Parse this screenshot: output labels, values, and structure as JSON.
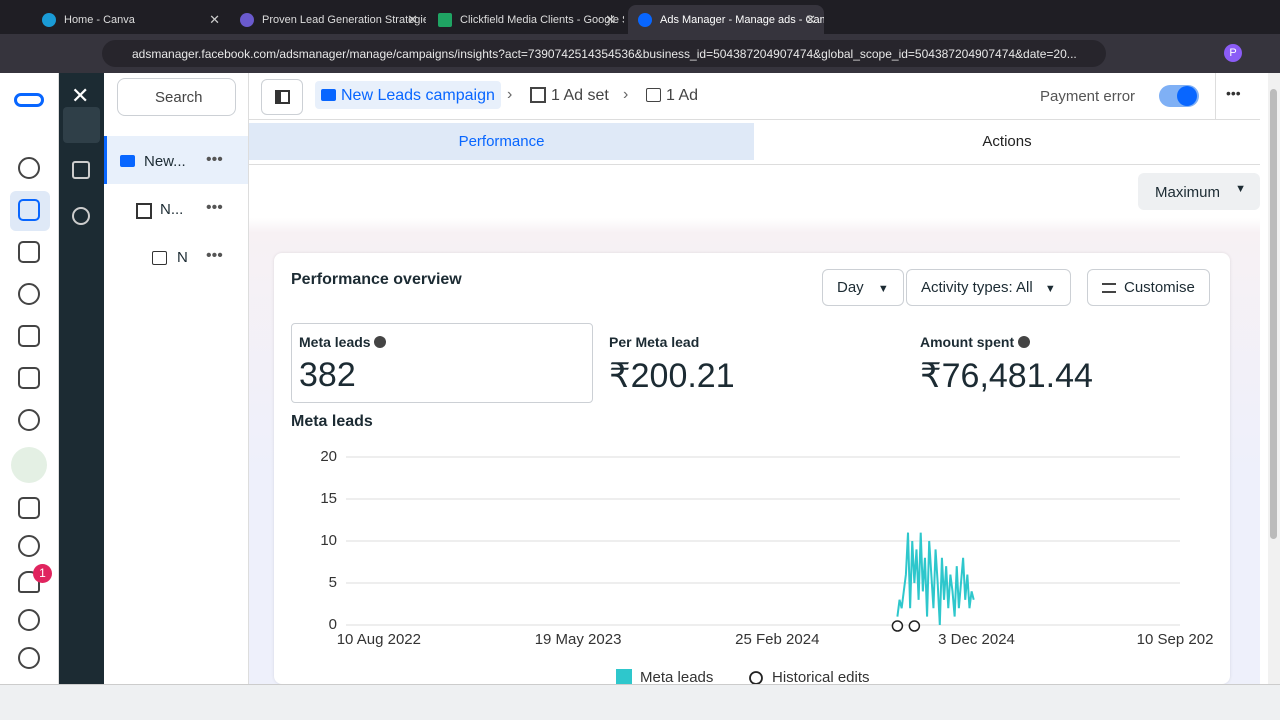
{
  "browser": {
    "tabs": [
      "Home - Canva",
      "Proven Lead Generation Strategies",
      "Clickfield Media Clients - Google Sheets",
      "Ads Manager - Manage ads - Campaigns"
    ],
    "url": "adsmanager.facebook.com/adsmanager/manage/campaigns/insights?act=7390742514354536&business_id=504387204907474&global_scope_id=504387204907474&date=20...",
    "profile": "P"
  },
  "sidebar": {
    "notification_count": "1"
  },
  "tree": {
    "search": "Search",
    "items": [
      "New...",
      "N...",
      "N"
    ]
  },
  "breadcrumb": {
    "campaign": "New Leads campaign",
    "adset": "1 Ad set",
    "ad": "1 Ad"
  },
  "status": "Payment error",
  "tabs": [
    "Performance",
    "Actions"
  ],
  "date_preset": "Maximum",
  "panel": {
    "title": "Performance overview",
    "controls": [
      "Day",
      "Activity types: All",
      "Customise"
    ],
    "metrics": [
      {
        "label": "Meta leads",
        "value": "382"
      },
      {
        "label": "Per Meta lead",
        "value": "₹200.21"
      },
      {
        "label": "Amount spent",
        "value": "₹76,481.44"
      }
    ]
  },
  "chart_data": {
    "type": "line",
    "title": "Meta leads",
    "x": [
      "2024-08-13",
      "2024-08-16",
      "2024-08-19",
      "2024-08-22",
      "2024-08-25",
      "2024-08-28",
      "2024-08-31",
      "2024-09-03",
      "2024-09-06",
      "2024-09-09",
      "2024-09-12",
      "2024-09-15",
      "2024-09-18",
      "2024-09-21",
      "2024-09-24",
      "2024-09-27",
      "2024-09-30",
      "2024-10-03",
      "2024-10-06",
      "2024-10-09",
      "2024-10-12",
      "2024-10-15",
      "2024-10-18",
      "2024-10-21",
      "2024-10-24",
      "2024-10-27",
      "2024-10-30",
      "2024-11-02",
      "2024-11-05",
      "2024-11-08",
      "2024-11-11",
      "2024-11-14",
      "2024-11-17",
      "2024-11-20",
      "2024-11-23",
      "2024-11-26",
      "2024-11-29"
    ],
    "series": [
      {
        "name": "Meta leads",
        "color": "#2ec7cc",
        "values": [
          1,
          3,
          2,
          4,
          6,
          11,
          2,
          10,
          5,
          9,
          3,
          11,
          4,
          8,
          1,
          10,
          6,
          2,
          9,
          5,
          0,
          8,
          3,
          7,
          2,
          6,
          4,
          1,
          7,
          2,
          5,
          8,
          3,
          6,
          2,
          4,
          3
        ]
      }
    ],
    "events": {
      "name": "Historical edits",
      "x": [
        "2024-08-13",
        "2024-09-06"
      ]
    },
    "xlim": [
      "2022-06-16",
      "2025-09-17"
    ],
    "xticks": [
      {
        "value": "2022-08-10",
        "label": "10 Aug 2022"
      },
      {
        "value": "2023-05-19",
        "label": "19 May 2023"
      },
      {
        "value": "2024-02-25",
        "label": "25 Feb 2024"
      },
      {
        "value": "2024-12-03",
        "label": "3 Dec 2024"
      },
      {
        "value": "2025-09-10",
        "label": "10 Sep 202"
      }
    ],
    "ylim": [
      0,
      20
    ],
    "yticks": [
      0,
      5,
      10,
      15,
      20
    ],
    "grid": true
  }
}
